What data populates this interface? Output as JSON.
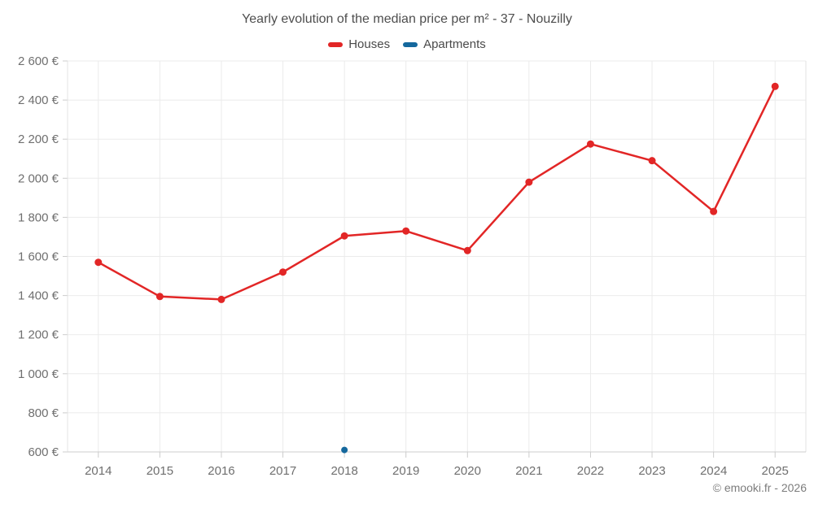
{
  "page": {
    "title": "Yearly evolution of the median price per m² - 37 - Nouzilly",
    "footer": "© emooki.fr - 2026"
  },
  "legend": [
    {
      "label": "Houses",
      "color": "#e22626"
    },
    {
      "label": "Apartments",
      "color": "#15689d"
    }
  ],
  "chart_data": {
    "type": "line",
    "title": "Yearly evolution of the median price per m² - 37 - Nouzilly",
    "categories": [
      "2014",
      "2015",
      "2016",
      "2017",
      "2018",
      "2019",
      "2020",
      "2021",
      "2022",
      "2023",
      "2024",
      "2025"
    ],
    "series": [
      {
        "name": "Houses",
        "color": "#e22626",
        "marker_radius": 4.5,
        "values": [
          1570,
          1395,
          1380,
          1520,
          1705,
          1730,
          1630,
          1980,
          2175,
          2090,
          1830,
          2470
        ]
      },
      {
        "name": "Apartments",
        "color": "#15689d",
        "marker_radius": 4,
        "values": [
          null,
          null,
          null,
          null,
          610,
          null,
          null,
          null,
          null,
          null,
          null,
          null
        ]
      }
    ],
    "xlabel": "",
    "ylabel": "",
    "ylim": [
      600,
      2600
    ],
    "y_tick_step": 200,
    "y_tick_labels": [
      "600 €",
      "800 €",
      "1 000 €",
      "1 200 €",
      "1 400 €",
      "1 600 €",
      "1 800 €",
      "2 000 €",
      "2 200 €",
      "2 400 €",
      "2 600 €"
    ],
    "grid": true,
    "legend_position": "top"
  },
  "style": {
    "grid_color": "#ebebeb",
    "axis_color": "#cccccc",
    "border_color": "#e3e3e3",
    "tick_label_color": "#6f6f6f"
  }
}
